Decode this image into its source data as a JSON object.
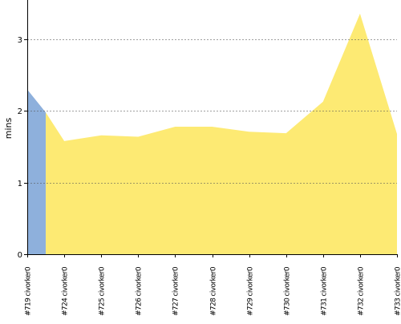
{
  "chart_data": {
    "type": "area",
    "ylabel": "mins",
    "ylim": [
      0,
      3.55
    ],
    "yticks": [
      0,
      1,
      2,
      3
    ],
    "grid": true,
    "legend": "none",
    "categories": [
      "#719 civorker0",
      "#724 civorker0",
      "#725 civorker0",
      "#726 civorker0",
      "#727 civorker0",
      "#728 civorker0",
      "#729 civorker0",
      "#730 civorker0",
      "#731 civorker0",
      "#732 civorker0",
      "#733 civorker0"
    ],
    "series": [
      {
        "color": "#8eb0dc",
        "values": [
          2.3,
          1.98,
          null,
          null,
          null,
          null,
          null,
          null,
          null,
          null,
          null
        ],
        "x_extent": [
          0,
          0.5
        ]
      },
      {
        "color": "#fdea73",
        "values": [
          1.98,
          1.58,
          1.66,
          1.64,
          1.78,
          1.78,
          1.71,
          1.69,
          2.13,
          3.36,
          1.68
        ],
        "x_start": 0.5
      }
    ]
  }
}
